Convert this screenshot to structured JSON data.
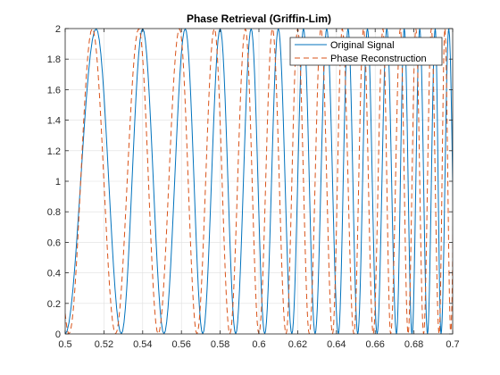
{
  "chart_data": {
    "type": "line",
    "title": "Phase Retrieval (Griffin-Lim)",
    "xlabel": "",
    "ylabel": "",
    "xlim": [
      0.5,
      0.7
    ],
    "ylim": [
      0,
      2
    ],
    "grid": true,
    "legend_location": "top-right",
    "x_ticks": [
      "0.5",
      "0.52",
      "0.54",
      "0.56",
      "0.58",
      "0.6",
      "0.62",
      "0.64",
      "0.66",
      "0.68",
      "0.7"
    ],
    "y_ticks": [
      "0",
      "0.2",
      "0.4",
      "0.6",
      "0.8",
      "1",
      "1.2",
      "1.4",
      "1.6",
      "1.8",
      "2"
    ],
    "series": [
      {
        "name": "Original Signal",
        "color": "#0072BD",
        "style": "solid",
        "peaks_x": [
          0.516,
          0.54,
          0.562,
          0.58,
          0.596,
          0.61,
          0.623,
          0.635,
          0.646,
          0.656,
          0.666,
          0.675,
          0.683,
          0.691,
          0.698
        ],
        "troughs_x": [
          0.5,
          0.529,
          0.551,
          0.571,
          0.588,
          0.603,
          0.617,
          0.629,
          0.641,
          0.651,
          0.661,
          0.671,
          0.679,
          0.687,
          0.694
        ],
        "min": 0,
        "max": 2
      },
      {
        "name": "Phase Reconstruction",
        "color": "#D95319",
        "style": "dashed",
        "peaks_x": [
          0.514,
          0.538,
          0.559,
          0.577,
          0.593,
          0.607,
          0.62,
          0.632,
          0.643,
          0.654,
          0.664,
          0.673,
          0.681,
          0.689,
          0.696
        ],
        "troughs_x": [
          0.502,
          0.526,
          0.548,
          0.568,
          0.585,
          0.6,
          0.614,
          0.626,
          0.638,
          0.649,
          0.659,
          0.668,
          0.677,
          0.685,
          0.693
        ],
        "min": 0,
        "max": 2
      }
    ]
  }
}
